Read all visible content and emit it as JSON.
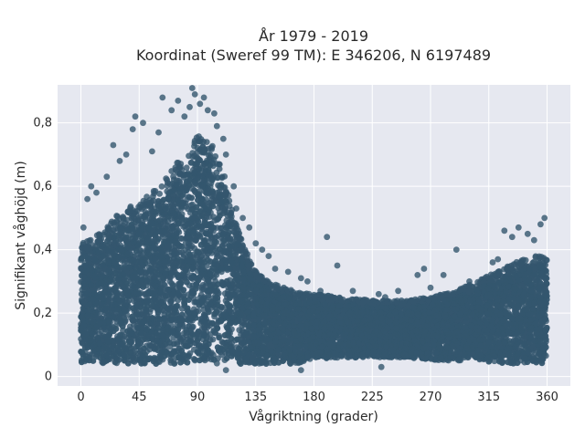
{
  "chart_data": {
    "type": "scatter",
    "title": "År 1979 - 2019",
    "subtitle": "Koordinat (Sweref 99 TM): E 346206, N 6197489",
    "xlabel": "Vågriktning (grader)",
    "ylabel": "Signifikant våghöjd (m)",
    "xlim": [
      -18,
      378
    ],
    "ylim": [
      -0.03,
      0.92
    ],
    "xticks": [
      0,
      45,
      90,
      135,
      180,
      225,
      270,
      315,
      360
    ],
    "xtick_labels": [
      "0",
      "45",
      "90",
      "135",
      "180",
      "225",
      "270",
      "315",
      "360"
    ],
    "yticks": [
      0,
      0.2,
      0.4,
      0.6,
      0.8
    ],
    "ytick_labels": [
      "0",
      "0,2",
      "0,4",
      "0,6",
      "0,8"
    ],
    "grid": true,
    "point_color": "#34566e",
    "background": "#e6e8f0",
    "envelope": {
      "direction": [
        0,
        10,
        20,
        30,
        45,
        55,
        65,
        75,
        85,
        90,
        100,
        110,
        115,
        125,
        135,
        150,
        165,
        180,
        200,
        225,
        250,
        270,
        290,
        310,
        325,
        340,
        350,
        360
      ],
      "lower": [
        0.04,
        0.04,
        0.04,
        0.04,
        0.04,
        0.04,
        0.04,
        0.04,
        0.04,
        0.04,
        0.04,
        0.04,
        0.04,
        0.04,
        0.04,
        0.04,
        0.04,
        0.05,
        0.06,
        0.06,
        0.06,
        0.05,
        0.05,
        0.05,
        0.04,
        0.04,
        0.04,
        0.04
      ],
      "upper": [
        0.42,
        0.44,
        0.47,
        0.52,
        0.55,
        0.58,
        0.62,
        0.68,
        0.72,
        0.76,
        0.74,
        0.66,
        0.55,
        0.42,
        0.33,
        0.29,
        0.27,
        0.26,
        0.25,
        0.24,
        0.24,
        0.25,
        0.27,
        0.31,
        0.34,
        0.37,
        0.38,
        0.38
      ]
    },
    "outliers": [
      [
        2,
        0.47
      ],
      [
        5,
        0.56
      ],
      [
        8,
        0.6
      ],
      [
        12,
        0.58
      ],
      [
        20,
        0.63
      ],
      [
        25,
        0.73
      ],
      [
        30,
        0.68
      ],
      [
        35,
        0.7
      ],
      [
        40,
        0.78
      ],
      [
        42,
        0.82
      ],
      [
        48,
        0.8
      ],
      [
        55,
        0.71
      ],
      [
        60,
        0.77
      ],
      [
        63,
        0.88
      ],
      [
        70,
        0.84
      ],
      [
        75,
        0.87
      ],
      [
        80,
        0.82
      ],
      [
        84,
        0.85
      ],
      [
        86,
        0.91
      ],
      [
        88,
        0.89
      ],
      [
        92,
        0.86
      ],
      [
        95,
        0.88
      ],
      [
        98,
        0.84
      ],
      [
        103,
        0.83
      ],
      [
        105,
        0.79
      ],
      [
        110,
        0.75
      ],
      [
        112,
        0.7
      ],
      [
        118,
        0.6
      ],
      [
        120,
        0.53
      ],
      [
        125,
        0.5
      ],
      [
        130,
        0.47
      ],
      [
        135,
        0.42
      ],
      [
        140,
        0.4
      ],
      [
        145,
        0.38
      ],
      [
        150,
        0.34
      ],
      [
        160,
        0.33
      ],
      [
        170,
        0.31
      ],
      [
        175,
        0.3
      ],
      [
        185,
        0.27
      ],
      [
        190,
        0.44
      ],
      [
        198,
        0.35
      ],
      [
        210,
        0.27
      ],
      [
        230,
        0.26
      ],
      [
        235,
        0.25
      ],
      [
        245,
        0.27
      ],
      [
        260,
        0.32
      ],
      [
        265,
        0.34
      ],
      [
        270,
        0.28
      ],
      [
        280,
        0.32
      ],
      [
        290,
        0.4
      ],
      [
        300,
        0.3
      ],
      [
        318,
        0.36
      ],
      [
        322,
        0.37
      ],
      [
        327,
        0.46
      ],
      [
        333,
        0.44
      ],
      [
        338,
        0.47
      ],
      [
        345,
        0.45
      ],
      [
        350,
        0.43
      ],
      [
        355,
        0.48
      ],
      [
        358,
        0.5
      ],
      [
        232,
        0.03
      ],
      [
        170,
        0.02
      ],
      [
        112,
        0.02
      ]
    ]
  }
}
